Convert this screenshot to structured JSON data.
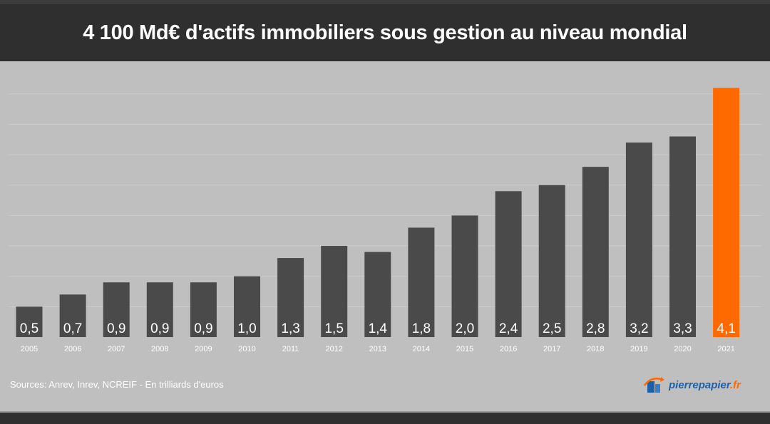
{
  "chart_data": {
    "type": "bar",
    "title": "4 100 Md€ d'actifs immobiliers sous gestion au niveau mondial",
    "categories": [
      "2005",
      "2006",
      "2007",
      "2008",
      "2009",
      "2010",
      "2011",
      "2012",
      "2013",
      "2014",
      "2015",
      "2016",
      "2017",
      "2018",
      "2019",
      "2020",
      "2021"
    ],
    "values": [
      0.5,
      0.7,
      0.9,
      0.9,
      0.9,
      1.0,
      1.3,
      1.5,
      1.4,
      1.8,
      2.0,
      2.4,
      2.5,
      2.8,
      3.2,
      3.3,
      4.1
    ],
    "data_labels": [
      "0,5",
      "0,7",
      "0,9",
      "0,9",
      "0,9",
      "1,0",
      "1,3",
      "1,5",
      "1,4",
      "1,8",
      "2,0",
      "2,4",
      "2,5",
      "2,8",
      "3,2",
      "3,3",
      "4,1"
    ],
    "highlight_index": 16,
    "colors": {
      "bar": "#4a4a4a",
      "highlight": "#ff6a00",
      "background": "#bfbfbf",
      "header": "#2f2f2f",
      "gridline": "#cccccc"
    },
    "ylim": [
      0,
      4.5
    ],
    "grid": true,
    "legend": "none",
    "xlabel": "",
    "ylabel": ""
  },
  "footer": {
    "source": "Sources:  Anrev, Inrev, NCREIF - En trilliards d'euros"
  },
  "logo": {
    "name_main": "pierrepapier",
    "name_suffix": ".fr",
    "icon": "building-arrow-icon"
  }
}
